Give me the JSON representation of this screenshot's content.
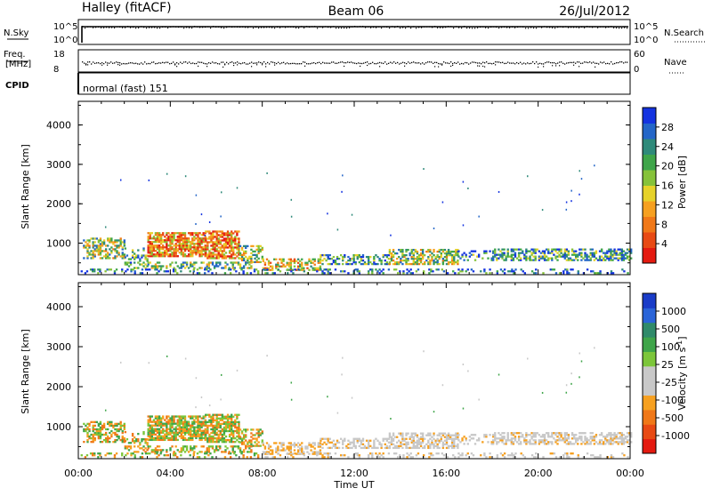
{
  "header": {
    "site": "Halley (fitACF)",
    "beam": "Beam 06",
    "date": "26/Jul/2012"
  },
  "status_panels": {
    "nsky_label": "N.Sky",
    "nsearch_label": "N.Search",
    "noise_ticks_left": [
      "10^5",
      "10^0"
    ],
    "noise_ticks_right": [
      "10^5",
      "10^0"
    ],
    "freq_label_1": "Freq.",
    "freq_label_2": "[MHz]",
    "freq_ticks": [
      "18",
      "8"
    ],
    "nave_label": "Nave",
    "nave_ticks": [
      "60",
      "0"
    ],
    "cpid_label": "CPID",
    "cpid_text": "normal (fast) 151"
  },
  "chart_data": [
    {
      "type": "heatmap",
      "name": "power",
      "ylabel": "Slant Range [km]",
      "ylim": [
        200,
        4600
      ],
      "yticks": [
        "4000",
        "3000",
        "2000",
        "1000"
      ],
      "ytick_values": [
        4000,
        3000,
        2000,
        1000
      ],
      "xlim": [
        0,
        24
      ],
      "colorbar": {
        "label": "Power [dB]",
        "ticks": [
          "28",
          "24",
          "20",
          "16",
          "12",
          "8",
          "4"
        ],
        "colors": [
          "#1433e0",
          "#2466c8",
          "#2f8a7a",
          "#3fa54a",
          "#86c23a",
          "#e6d22a",
          "#f6a020",
          "#f07818",
          "#e84a14",
          "#e41a10"
        ]
      }
    },
    {
      "type": "heatmap",
      "name": "velocity",
      "ylabel": "Slant Range [km]",
      "ylim": [
        200,
        4600
      ],
      "yticks": [
        "4000",
        "3000",
        "2000",
        "1000"
      ],
      "ytick_values": [
        4000,
        3000,
        2000,
        1000
      ],
      "xlim": [
        0,
        24
      ],
      "xticks": [
        "00:00",
        "04:00",
        "08:00",
        "12:00",
        "16:00",
        "20:00",
        "00:00"
      ],
      "xtick_values": [
        0,
        4,
        8,
        12,
        16,
        20,
        24
      ],
      "xlabel": "Time UT",
      "colorbar": {
        "label": "Velocity [m s^-1]",
        "ticks": [
          "1000",
          "500",
          "100",
          "25",
          "-25",
          "-100",
          "-500",
          "-1000"
        ],
        "colors": [
          "#1a3cc8",
          "#2a64d8",
          "#2f8a6a",
          "#3fa54a",
          "#7cc63a",
          "#c8c8c8",
          "#c8c8c8",
          "#f6a020",
          "#f07818",
          "#e84a14",
          "#e41a10"
        ]
      }
    }
  ]
}
